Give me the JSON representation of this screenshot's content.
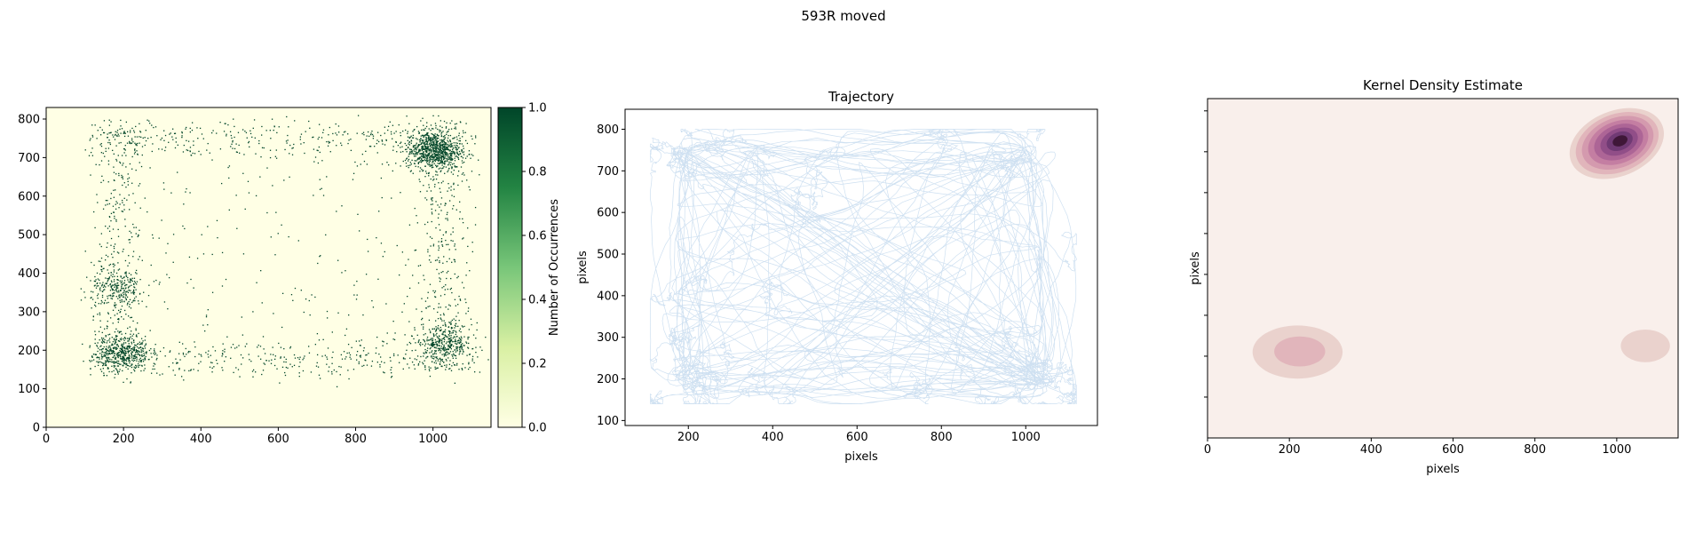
{
  "figure": {
    "suptitle": "593R moved",
    "colors": {
      "heat_low": "#ffffe5",
      "heat_high": "#004529",
      "traj": "#c6dbef",
      "kde_bg": "#f9efeb",
      "kde_peak": "#3f1738"
    }
  },
  "chart_data": [
    {
      "type": "heatmap",
      "title": "",
      "xlabel": "",
      "ylabel": "",
      "xlim": [
        0,
        1150
      ],
      "ylim": [
        0,
        830
      ],
      "xticks": [
        "0",
        "200",
        "400",
        "600",
        "800",
        "1000"
      ],
      "yticks": [
        "0",
        "100",
        "200",
        "300",
        "400",
        "500",
        "600",
        "700",
        "800"
      ],
      "colorbar": {
        "label": "Number of Occurrences",
        "range": [
          0,
          1
        ],
        "ticks": [
          "0.0",
          "0.2",
          "0.4",
          "0.6",
          "0.8",
          "1.0"
        ],
        "colormap": "YlGn"
      },
      "hotspots": [
        {
          "x": 1000,
          "y": 720,
          "weight": 0.35
        },
        {
          "x": 195,
          "y": 195,
          "weight": 0.2
        },
        {
          "x": 185,
          "y": 360,
          "weight": 0.1
        },
        {
          "x": 1030,
          "y": 220,
          "weight": 0.15
        }
      ]
    },
    {
      "type": "line",
      "title": "Trajectory",
      "xlabel": "pixels",
      "ylabel": "pixels",
      "xlim": [
        50,
        1170
      ],
      "ylim": [
        88,
        848
      ],
      "xticks": [
        "200",
        "400",
        "600",
        "800",
        "1000"
      ],
      "yticks": [
        "100",
        "200",
        "300",
        "400",
        "500",
        "600",
        "700",
        "800"
      ],
      "series": [
        {
          "name": "",
          "region": {
            "x": [
              110,
              1120
            ],
            "y": [
              140,
              800
            ]
          },
          "corners": [
            [
              1000,
              740
            ],
            [
              190,
              200
            ],
            [
              1030,
              200
            ],
            [
              190,
              740
            ]
          ]
        }
      ]
    },
    {
      "type": "heatmap",
      "title": "Kernel Density Estimate",
      "xlabel": "pixels",
      "ylabel": "pixels",
      "xlim": [
        0,
        1150
      ],
      "ylim": [
        0,
        830
      ],
      "xticks": [
        "0",
        "200",
        "400",
        "600",
        "800",
        "1000"
      ],
      "yticks": [
        "",
        "",
        "",
        "",
        "",
        "",
        "",
        ""
      ],
      "peaks": [
        {
          "x": 1000,
          "y": 720,
          "sx": 120,
          "sy": 80,
          "levels": 8
        },
        {
          "x": 220,
          "y": 210,
          "sx": 110,
          "sy": 65,
          "levels": 2
        },
        {
          "x": 1070,
          "y": 225,
          "sx": 60,
          "sy": 40,
          "levels": 1
        }
      ]
    }
  ]
}
